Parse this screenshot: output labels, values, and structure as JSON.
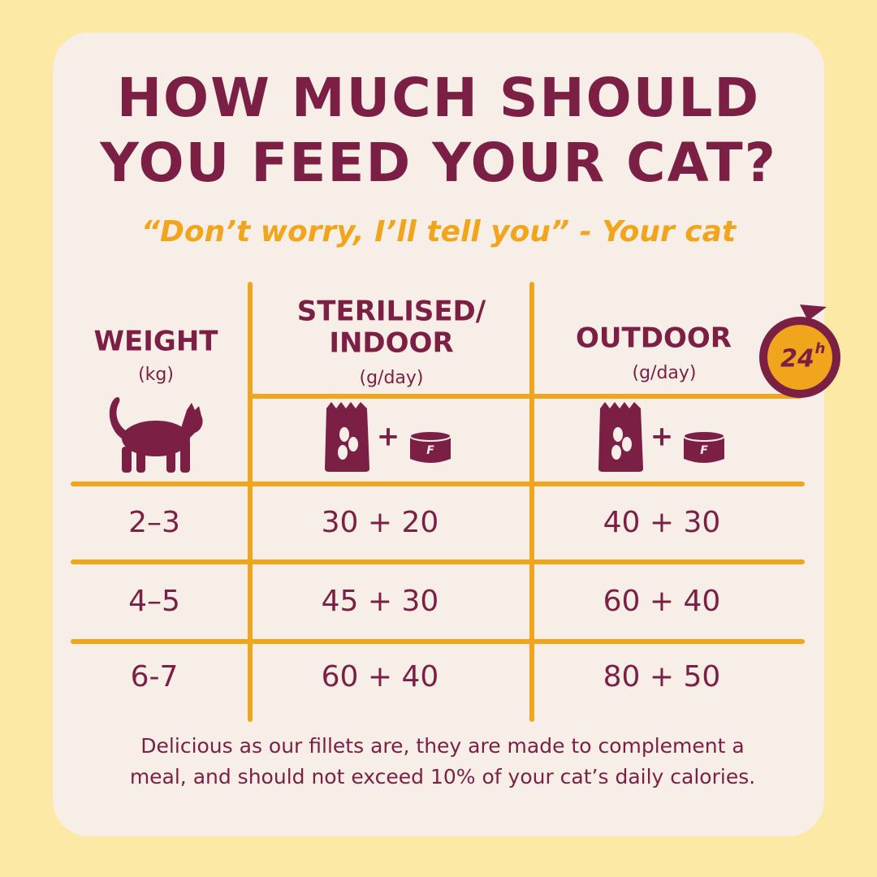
{
  "header": {
    "title_lines": [
      "HOW MUCH SHOULD",
      "YOU FEED YOUR CAT?"
    ],
    "subtitle": "“Don’t worry, I’ll tell you” - Your cat"
  },
  "table": {
    "columns": [
      {
        "title_lines": [
          "WEIGHT"
        ],
        "unit": "(kg)"
      },
      {
        "title_lines": [
          "STERILISED/",
          "INDOOR"
        ],
        "unit": "(g/day)"
      },
      {
        "title_lines": [
          "OUTDOOR"
        ],
        "unit": "(g/day)"
      }
    ],
    "icon_plus": "+",
    "can_label": "F",
    "rows": [
      [
        "2–3",
        "30 + 20",
        "40 + 30"
      ],
      [
        "4–5",
        "45 + 30",
        "60 + 40"
      ],
      [
        "6-7",
        "60 + 40",
        "80 + 50"
      ]
    ]
  },
  "badge": {
    "number": "24",
    "unit": "h"
  },
  "footnote": {
    "lines": [
      "Delicious as our fillets are, they are made to complement a",
      "meal, and should not exceed 10% of your cat’s daily calories."
    ]
  }
}
